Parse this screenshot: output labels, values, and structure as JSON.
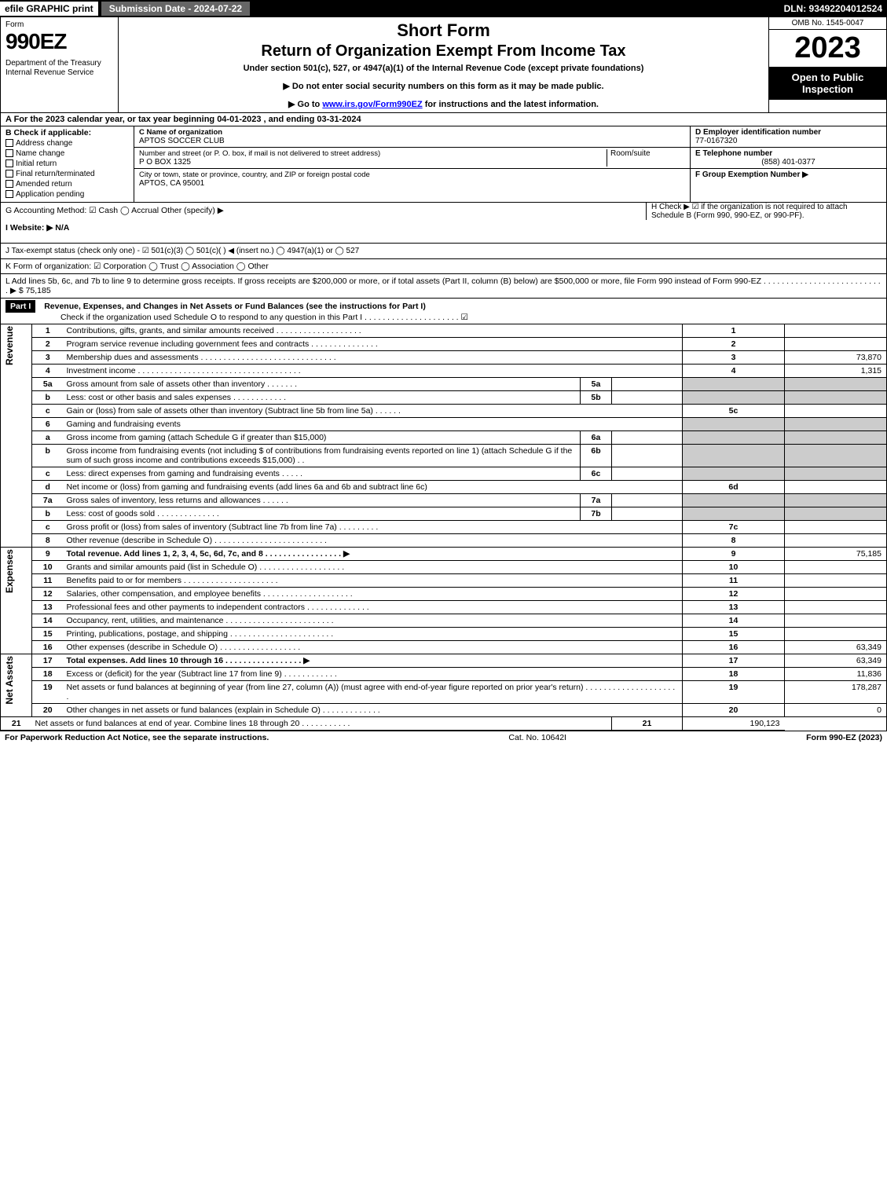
{
  "topbar": {
    "efile": "efile GRAPHIC print",
    "subdate_label": "Submission Date - 2024-07-22",
    "dln": "DLN: 93492204012524"
  },
  "header": {
    "form_word": "Form",
    "form_number": "990EZ",
    "dept": "Department of the Treasury\nInternal Revenue Service",
    "short": "Short Form",
    "title": "Return of Organization Exempt From Income Tax",
    "subtitle": "Under section 501(c), 527, or 4947(a)(1) of the Internal Revenue Code (except private foundations)",
    "note1": "▶ Do not enter social security numbers on this form as it may be made public.",
    "note2_prefix": "▶ Go to ",
    "note2_link": "www.irs.gov/Form990EZ",
    "note2_suffix": " for instructions and the latest information.",
    "omb": "OMB No. 1545-0047",
    "year": "2023",
    "open": "Open to Public Inspection"
  },
  "line_a": "A  For the 2023 calendar year, or tax year beginning 04-01-2023 , and ending 03-31-2024",
  "box_b": {
    "title": "B  Check if applicable:",
    "opts": [
      "Address change",
      "Name change",
      "Initial return",
      "Final return/terminated",
      "Amended return",
      "Application pending"
    ]
  },
  "box_c": {
    "name_label": "C Name of organization",
    "name": "APTOS SOCCER CLUB",
    "street_label": "Number and street (or P. O. box, if mail is not delivered to street address)",
    "room_label": "Room/suite",
    "street": "P O BOX 1325",
    "city_label": "City or town, state or province, country, and ZIP or foreign postal code",
    "city": "APTOS, CA  95001"
  },
  "box_def": {
    "d_label": "D Employer identification number",
    "d_val": "77-0167320",
    "e_label": "E Telephone number",
    "e_val": "(858) 401-0377",
    "f_label": "F Group Exemption Number   ▶"
  },
  "box_g": "G Accounting Method:   ☑ Cash  ◯ Accrual   Other (specify) ▶",
  "box_h": "H  Check ▶  ☑  if the organization is not required to attach Schedule B (Form 990, 990-EZ, or 990-PF).",
  "box_i": "I Website: ▶ N/A",
  "box_j": "J Tax-exempt status (check only one) -  ☑ 501(c)(3)  ◯ 501(c)(  ) ◀ (insert no.)  ◯ 4947(a)(1) or  ◯ 527",
  "box_k": "K Form of organization:   ☑ Corporation   ◯ Trust   ◯ Association   ◯ Other",
  "box_l": "L Add lines 5b, 6c, and 7b to line 9 to determine gross receipts. If gross receipts are $200,000 or more, or if total assets (Part II, column (B) below) are $500,000 or more, file Form 990 instead of Form 990-EZ  .  .  .  .  .  .  .  .  .  .  .  .  .  .  .  .  .  .  .  .  .  .  .  .  .  .  .  ▶ $ 75,185",
  "part1": {
    "label": "Part I",
    "title": "Revenue, Expenses, and Changes in Net Assets or Fund Balances (see the instructions for Part I)",
    "check": "Check if the organization used Schedule O to respond to any question in this Part I  .  .  .  .  .  .  .  .  .  .  .  .  .  .  .  .  .  .  .  .  .   ☑"
  },
  "sections": {
    "revenue": "Revenue",
    "expenses": "Expenses",
    "netassets": "Net Assets"
  },
  "lines": [
    {
      "n": "1",
      "desc": "Contributions, gifts, grants, and similar amounts received  .  .  .  .  .  .  .  .  .  .  .  .  .  .  .  .  .  .  .",
      "num": "1",
      "amt": ""
    },
    {
      "n": "2",
      "desc": "Program service revenue including government fees and contracts  .  .  .  .  .  .  .  .  .  .  .  .  .  .  .",
      "num": "2",
      "amt": ""
    },
    {
      "n": "3",
      "desc": "Membership dues and assessments  .  .  .  .  .  .  .  .  .  .  .  .  .  .  .  .  .  .  .  .  .  .  .  .  .  .  .  .  .  .",
      "num": "3",
      "amt": "73,870"
    },
    {
      "n": "4",
      "desc": "Investment income  .  .  .  .  .  .  .  .  .  .  .  .  .  .  .  .  .  .  .  .  .  .  .  .  .  .  .  .  .  .  .  .  .  .  .  .",
      "num": "4",
      "amt": "1,315"
    },
    {
      "n": "5a",
      "desc": "Gross amount from sale of assets other than inventory  .  .  .  .  .  .  .",
      "sub": "5a"
    },
    {
      "n": "b",
      "desc": "Less: cost or other basis and sales expenses  .  .  .  .  .  .  .  .  .  .  .  .",
      "sub": "5b"
    },
    {
      "n": "c",
      "desc": "Gain or (loss) from sale of assets other than inventory (Subtract line 5b from line 5a)  .  .  .  .  .  .",
      "num": "5c",
      "amt": ""
    },
    {
      "n": "6",
      "desc": "Gaming and fundraising events"
    },
    {
      "n": "a",
      "desc": "Gross income from gaming (attach Schedule G if greater than $15,000)",
      "sub": "6a"
    },
    {
      "n": "b",
      "desc": "Gross income from fundraising events (not including $                      of contributions from fundraising events reported on line 1) (attach Schedule G if the sum of such gross income and contributions exceeds $15,000)    .   .",
      "sub": "6b"
    },
    {
      "n": "c",
      "desc": "Less: direct expenses from gaming and fundraising events    .  .  .  .  .",
      "sub": "6c"
    },
    {
      "n": "d",
      "desc": "Net income or (loss) from gaming and fundraising events (add lines 6a and 6b and subtract line 6c)",
      "num": "6d",
      "amt": ""
    },
    {
      "n": "7a",
      "desc": "Gross sales of inventory, less returns and allowances  .  .  .  .  .  .",
      "sub": "7a"
    },
    {
      "n": "b",
      "desc": "Less: cost of goods sold        .   .   .   .   .   .   .   .   .   .   .   .   .   .",
      "sub": "7b"
    },
    {
      "n": "c",
      "desc": "Gross profit or (loss) from sales of inventory (Subtract line 7b from line 7a)  .  .  .  .  .  .  .  .  .",
      "num": "7c",
      "amt": ""
    },
    {
      "n": "8",
      "desc": "Other revenue (describe in Schedule O)  .  .  .  .  .  .  .  .  .  .  .  .  .  .  .  .  .  .  .  .  .  .  .  .  .",
      "num": "8",
      "amt": ""
    },
    {
      "n": "9",
      "desc": "Total revenue. Add lines 1, 2, 3, 4, 5c, 6d, 7c, and 8   .  .  .  .  .  .  .  .  .  .  .  .  .  .  .  .  .      ▶",
      "num": "9",
      "amt": "75,185",
      "bold": true
    },
    {
      "n": "10",
      "desc": "Grants and similar amounts paid (list in Schedule O)  .  .  .  .  .  .  .  .  .  .  .  .  .  .  .  .  .  .  .",
      "num": "10",
      "amt": ""
    },
    {
      "n": "11",
      "desc": "Benefits paid to or for members      .   .   .   .   .   .   .   .   .   .   .   .   .   .   .   .   .   .   .   .   .",
      "num": "11",
      "amt": ""
    },
    {
      "n": "12",
      "desc": "Salaries, other compensation, and employee benefits .  .  .  .  .  .  .  .  .  .  .  .  .  .  .  .  .  .  .  .",
      "num": "12",
      "amt": ""
    },
    {
      "n": "13",
      "desc": "Professional fees and other payments to independent contractors  .  .  .  .  .  .  .  .  .  .  .  .  .  .",
      "num": "13",
      "amt": ""
    },
    {
      "n": "14",
      "desc": "Occupancy, rent, utilities, and maintenance .  .  .  .  .  .  .  .  .  .  .  .  .  .  .  .  .  .  .  .  .  .  .  .",
      "num": "14",
      "amt": ""
    },
    {
      "n": "15",
      "desc": "Printing, publications, postage, and shipping .  .  .  .  .  .  .  .  .  .  .  .  .  .  .  .  .  .  .  .  .  .  .",
      "num": "15",
      "amt": ""
    },
    {
      "n": "16",
      "desc": "Other expenses (describe in Schedule O)     .   .   .   .   .   .   .   .   .   .   .   .   .   .   .   .   .   .",
      "num": "16",
      "amt": "63,349"
    },
    {
      "n": "17",
      "desc": "Total expenses. Add lines 10 through 16     .   .   .   .   .   .   .   .   .   .   .   .   .   .   .   .   .   ▶",
      "num": "17",
      "amt": "63,349",
      "bold": true
    },
    {
      "n": "18",
      "desc": "Excess or (deficit) for the year (Subtract line 17 from line 9)       .   .   .   .   .   .   .   .   .   .   .   .",
      "num": "18",
      "amt": "11,836"
    },
    {
      "n": "19",
      "desc": "Net assets or fund balances at beginning of year (from line 27, column (A)) (must agree with end-of-year figure reported on prior year's return) .  .  .  .  .  .  .  .  .  .  .  .  .  .  .  .  .  .  .  .  .",
      "num": "19",
      "amt": "178,287"
    },
    {
      "n": "20",
      "desc": "Other changes in net assets or fund balances (explain in Schedule O) .  .  .  .  .  .  .  .  .  .  .  .  .",
      "num": "20",
      "amt": "0"
    },
    {
      "n": "21",
      "desc": "Net assets or fund balances at end of year. Combine lines 18 through 20 .  .  .  .  .  .  .  .  .  .  .",
      "num": "21",
      "amt": "190,123"
    }
  ],
  "footer": {
    "left": "For Paperwork Reduction Act Notice, see the separate instructions.",
    "center": "Cat. No. 10642I",
    "right": "Form 990-EZ (2023)"
  }
}
